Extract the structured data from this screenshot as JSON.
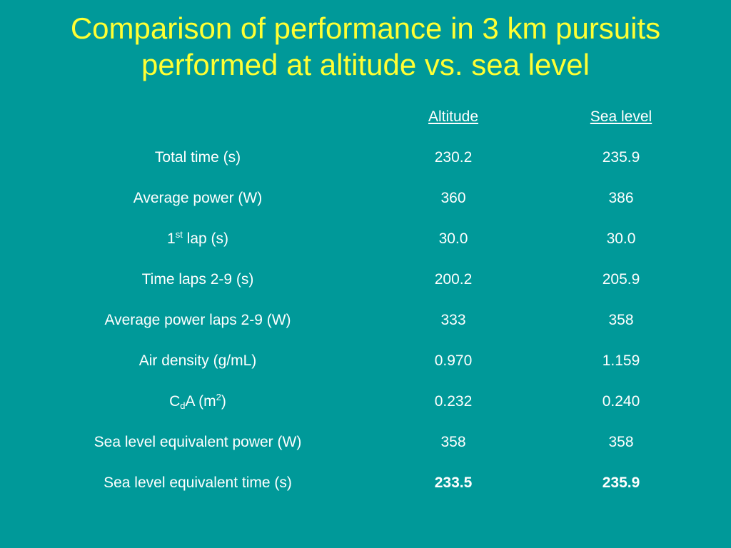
{
  "title": {
    "line1": "Comparison of performance in 3 km pursuits",
    "line2": "performed at altitude vs. sea level"
  },
  "table": {
    "headers": [
      "",
      "Altitude",
      "Sea level"
    ],
    "rows": [
      {
        "label": "Total time (s)",
        "altitude": "230.2",
        "sea_level": "235.9"
      },
      {
        "label": "Average power (W)",
        "altitude": "360",
        "sea_level": "386"
      },
      {
        "label_parts": [
          "1",
          "st",
          " lap (s)"
        ],
        "altitude": "30.0",
        "sea_level": "30.0"
      },
      {
        "label": "Time laps 2-9 (s)",
        "altitude": "200.2",
        "sea_level": "205.9"
      },
      {
        "label": "Average power laps 2-9 (W)",
        "altitude": "333",
        "sea_level": "358"
      },
      {
        "label": "Air density (g/mL)",
        "altitude": "0.970",
        "sea_level": "1.159"
      },
      {
        "label_parts": [
          "C",
          "d",
          "A (m",
          "2",
          ")"
        ],
        "altitude": "0.232",
        "sea_level": "0.240"
      },
      {
        "label": "Sea level equivalent power (W)",
        "altitude": "358",
        "sea_level": "358"
      },
      {
        "label": "Sea level equivalent time (s)",
        "altitude": "233.5",
        "sea_level": "235.9"
      }
    ]
  },
  "colors": {
    "background": "#009999",
    "title": "#FFFF33",
    "text": "#FFFFFF"
  }
}
